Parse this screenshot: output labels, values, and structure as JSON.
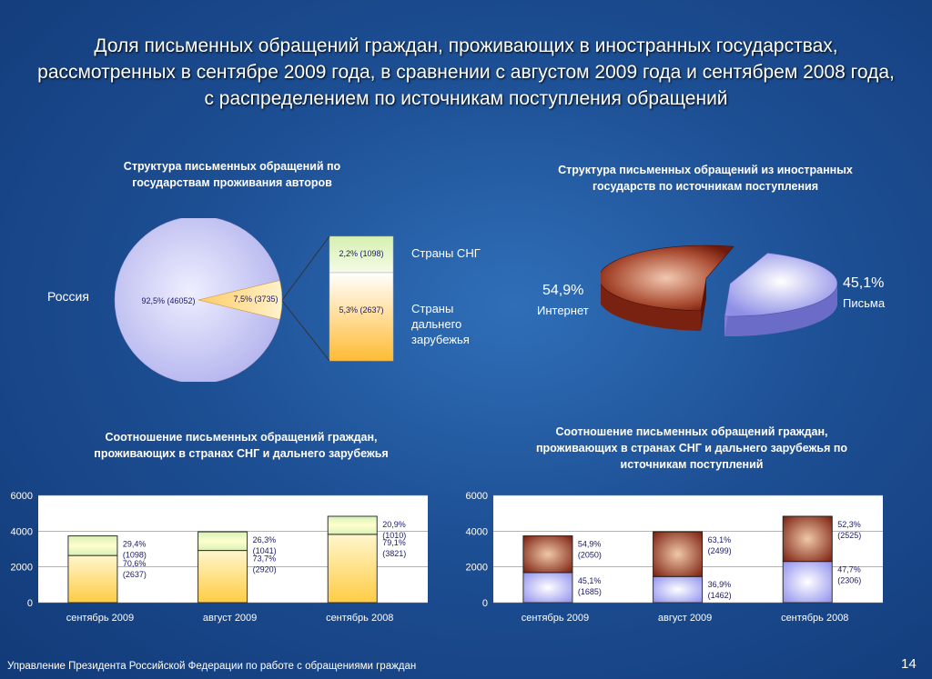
{
  "title": "Доля письменных обращений граждан, проживающих в иностранных государствах, рассмотренных в сентябре 2009 года, в сравнении с августом 2009 года и сентябрем 2008 года, с распределением по источникам поступления обращений",
  "footer": "Управление Президента Российской Федерации по работе с обращениями граждан",
  "page_number": "14",
  "colors": {
    "background": "#1d4f94",
    "pie_main": "#c8c8f5",
    "sng": "#e6f5c8",
    "far": "#ffcc55",
    "internet": "#8b2a1a",
    "letters": "#9a9af0"
  },
  "chart_data": [
    {
      "type": "pie",
      "title": "Структура письменных обращений по государствам проживания авторов",
      "slices": [
        {
          "name": "Россия",
          "percent": 92.5,
          "count": 46052,
          "label": "92,5% (46052)"
        },
        {
          "name": "",
          "percent": 7.5,
          "count": 3735,
          "label": "7,5% (3735)"
        }
      ],
      "breakdown": [
        {
          "name": "Страны СНГ",
          "percent": 2.2,
          "count": 1098,
          "label": "2,2% (1098)"
        },
        {
          "name": "Страны дальнего зарубежья",
          "percent": 5.3,
          "count": 2637,
          "label": "5,3% (2637)"
        }
      ],
      "slice_label": "Россия",
      "legend_sng": "Страны СНГ",
      "legend_far": [
        "Страны",
        "дальнего",
        "зарубежья"
      ]
    },
    {
      "type": "pie",
      "title": "Структура письменных обращений из иностранных государств по источникам поступления",
      "slices": [
        {
          "name": "Интернет",
          "percent": 54.9,
          "label": "54,9%"
        },
        {
          "name": "Письма",
          "percent": 45.1,
          "label": "45,1%"
        }
      ]
    },
    {
      "type": "bar",
      "stacked": true,
      "title": "Соотношение письменных обращений граждан, проживающих в странах СНГ и дальнего зарубежья",
      "categories": [
        "сентябрь 2009",
        "август 2009",
        "сентябрь 2008"
      ],
      "ylim": [
        0,
        6000
      ],
      "yticks": [
        "0",
        "2000",
        "4000",
        "6000"
      ],
      "series": [
        {
          "name": "",
          "values": [
            2637,
            2920,
            3821
          ],
          "labels": [
            [
              "70,6%",
              "(2637)"
            ],
            [
              "73,7%",
              "(2920)"
            ],
            [
              "79,1%",
              "(3821)"
            ]
          ]
        },
        {
          "name": "",
          "values": [
            1098,
            1041,
            1010
          ],
          "labels": [
            [
              "29,4%",
              "(1098)"
            ],
            [
              "26,3%",
              "(1041)"
            ],
            [
              "20,9%",
              "(1010)"
            ]
          ]
        }
      ]
    },
    {
      "type": "bar",
      "stacked": true,
      "title": "Соотношение письменных обращений граждан, проживающих в странах СНГ и дальнего зарубежья по источникам поступлений",
      "categories": [
        "сентябрь 2009",
        "август 2009",
        "сентябрь 2008"
      ],
      "ylim": [
        0,
        6000
      ],
      "yticks": [
        "0",
        "2000",
        "4000",
        "6000"
      ],
      "series": [
        {
          "name": "",
          "values": [
            1685,
            1462,
            2306
          ],
          "labels": [
            [
              "45,1%",
              "(1685)"
            ],
            [
              "36,9%",
              "(1462)"
            ],
            [
              "47,7%",
              "(2306)"
            ]
          ]
        },
        {
          "name": "",
          "values": [
            2050,
            2499,
            2525
          ],
          "labels": [
            [
              "54,9%",
              "(2050)"
            ],
            [
              "63,1%",
              "(2499)"
            ],
            [
              "52,3%",
              "(2525)"
            ]
          ]
        }
      ]
    }
  ]
}
